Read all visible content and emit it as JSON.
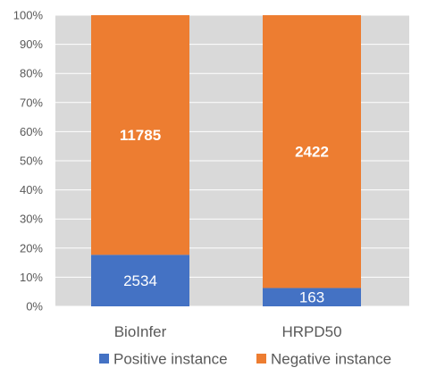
{
  "chart_data": {
    "type": "bar",
    "stacked": "percent",
    "categories": [
      "BioInfer",
      "HRPD50"
    ],
    "series": [
      {
        "name": "Positive instance",
        "values": [
          2534,
          163
        ],
        "color": "#4472C4",
        "label_bold": false
      },
      {
        "name": "Negative instance",
        "values": [
          11785,
          2422
        ],
        "color": "#ED7D31",
        "label_bold": true
      }
    ],
    "y_ticks": [
      "0%",
      "10%",
      "20%",
      "30%",
      "40%",
      "50%",
      "60%",
      "70%",
      "80%",
      "90%",
      "100%"
    ],
    "ylim": [
      0,
      100
    ],
    "grid": true,
    "legend": "bottom",
    "title": "",
    "xlabel": "",
    "ylabel": ""
  }
}
